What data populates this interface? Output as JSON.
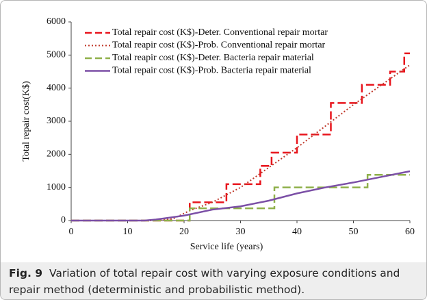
{
  "chart_data": {
    "type": "line",
    "xlabel": "Service life (years)",
    "ylabel": "Total repair cost(K$)",
    "xlim": [
      0,
      60
    ],
    "xticks": [
      0,
      10,
      20,
      30,
      40,
      50,
      60
    ],
    "ylim": [
      0,
      6000
    ],
    "yticks": [
      0,
      1000,
      2000,
      3000,
      4000,
      5000,
      6000
    ],
    "grid": false,
    "legend": "upper-left",
    "series": [
      {
        "name": "Total repair cost (K$)-Deter. Conventional repair mortar",
        "color": "#e8141c",
        "style": "dashed",
        "x": [
          0,
          21,
          21,
          27.5,
          27.5,
          33.5,
          33.5,
          35.5,
          35.5,
          40,
          40,
          46,
          46,
          51.5,
          51.5,
          56.5,
          56.5,
          59,
          59,
          60
        ],
        "values": [
          0,
          0,
          550,
          550,
          1100,
          1100,
          1650,
          1650,
          2050,
          2050,
          2600,
          2600,
          3550,
          3550,
          4100,
          4100,
          4500,
          4500,
          5050,
          5050
        ]
      },
      {
        "name": "Total reapir cost (K$)-Prob. Conventional repair mortar",
        "color": "#c0392b",
        "style": "dotted",
        "x": [
          0,
          15,
          18,
          21,
          25,
          30,
          35,
          40,
          45,
          50,
          55,
          60
        ],
        "values": [
          0,
          0,
          50,
          300,
          550,
          1000,
          1600,
          2200,
          2850,
          3500,
          4100,
          4700
        ]
      },
      {
        "name": "Total reapir cost (K$)-Deter. Bacteria repair material",
        "color": "#8fb04a",
        "style": "dashed",
        "x": [
          0,
          21,
          21,
          36,
          36,
          52.5,
          52.5,
          60
        ],
        "values": [
          0,
          0,
          370,
          370,
          1000,
          1000,
          1380,
          1380
        ]
      },
      {
        "name": "Total repair cost (K$)-Prob. Bacteria repair material",
        "color": "#7b4fa6",
        "style": "solid",
        "x": [
          0,
          13,
          15,
          20,
          25,
          30,
          35,
          40,
          45,
          50,
          55,
          60
        ],
        "values": [
          0,
          0,
          30,
          150,
          330,
          430,
          600,
          820,
          1000,
          1150,
          1320,
          1490
        ]
      }
    ]
  },
  "caption": {
    "label": "Fig. 9",
    "text": "Variation of total repair cost with varying exposure conditions and repair method (deterministic and probabilistic method)."
  }
}
